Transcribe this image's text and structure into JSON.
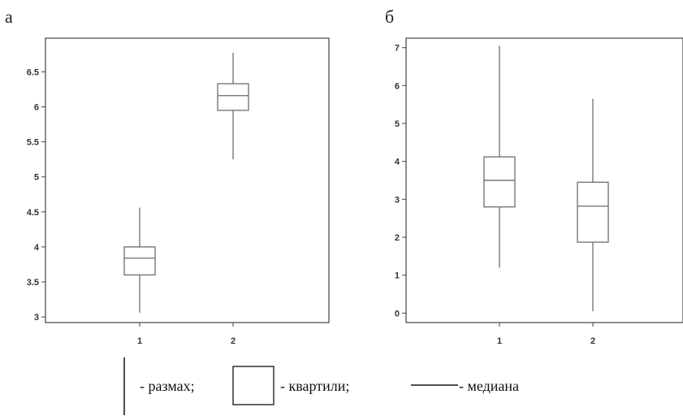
{
  "panels": [
    {
      "letter": "а"
    },
    {
      "letter": "б"
    }
  ],
  "chart_data": [
    {
      "type": "box",
      "categories": [
        "1",
        "2"
      ],
      "y_ticks": [
        "3",
        "3.5",
        "4",
        "4.5",
        "5",
        "5.5",
        "6",
        "6.5"
      ],
      "ylim": [
        2.92,
        6.98
      ],
      "boxes": [
        {
          "category": "1",
          "min": 3.06,
          "q1": 3.6,
          "median": 3.84,
          "q3": 4.0,
          "max": 4.56
        },
        {
          "category": "2",
          "min": 5.25,
          "q1": 5.95,
          "median": 6.16,
          "q3": 6.33,
          "max": 6.77
        }
      ]
    },
    {
      "type": "box",
      "categories": [
        "1",
        "2"
      ],
      "y_ticks": [
        "0",
        "1",
        "2",
        "3",
        "4",
        "5",
        "6",
        "7"
      ],
      "ylim": [
        -0.25,
        7.25
      ],
      "boxes": [
        {
          "category": "1",
          "min": 1.2,
          "q1": 2.8,
          "median": 3.5,
          "q3": 4.12,
          "max": 7.05
        },
        {
          "category": "2",
          "min": 0.05,
          "q1": 1.87,
          "median": 2.82,
          "q3": 3.45,
          "max": 5.65
        }
      ]
    }
  ],
  "legend": {
    "range_label": "- размах;",
    "quartile_label": "- квартили;",
    "median_label": "- медиана"
  }
}
